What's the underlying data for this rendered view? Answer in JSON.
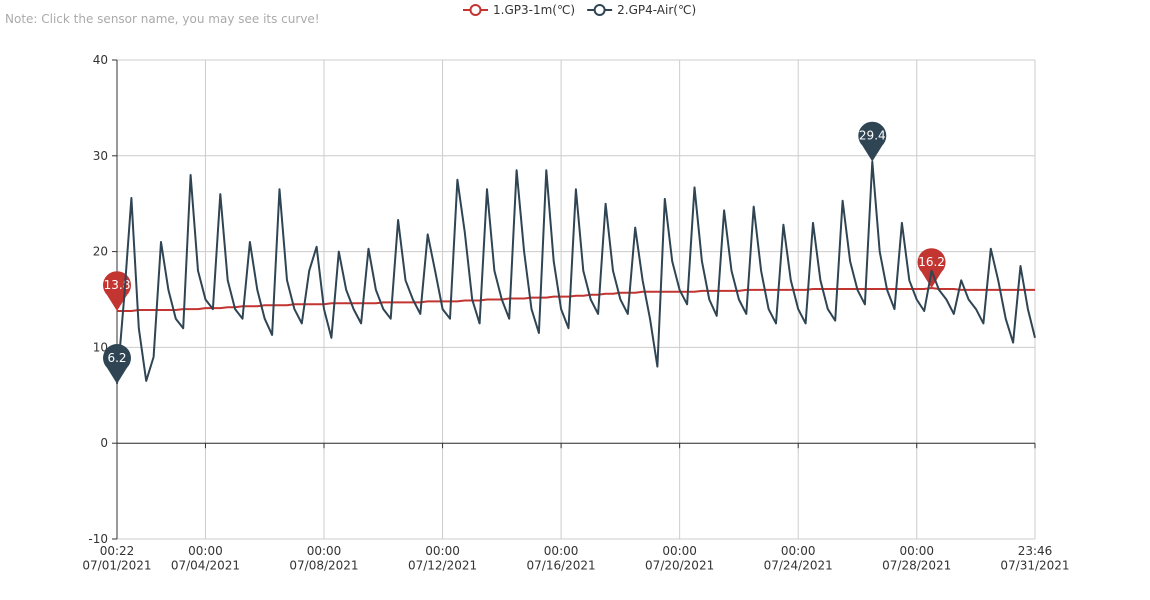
{
  "note": "Note: Click the sensor name, you may see its curve!",
  "chart_data": {
    "type": "line",
    "x": [
      "07/01/2021 00:22",
      "07/01/2021 06:00",
      "07/01/2021 12:00",
      "07/01/2021 18:00",
      "07/02/2021 00:00",
      "07/02/2021 06:00",
      "07/02/2021 12:00",
      "07/02/2021 18:00",
      "07/03/2021 00:00",
      "07/03/2021 06:00",
      "07/03/2021 12:00",
      "07/03/2021 18:00",
      "07/04/2021 00:00",
      "07/04/2021 06:00",
      "07/04/2021 12:00",
      "07/04/2021 18:00",
      "07/05/2021 00:00",
      "07/05/2021 06:00",
      "07/05/2021 12:00",
      "07/05/2021 18:00",
      "07/06/2021 00:00",
      "07/06/2021 06:00",
      "07/06/2021 12:00",
      "07/06/2021 18:00",
      "07/07/2021 00:00",
      "07/07/2021 06:00",
      "07/07/2021 12:00",
      "07/07/2021 18:00",
      "07/08/2021 00:00",
      "07/08/2021 06:00",
      "07/08/2021 12:00",
      "07/08/2021 18:00",
      "07/09/2021 00:00",
      "07/09/2021 06:00",
      "07/09/2021 12:00",
      "07/09/2021 18:00",
      "07/10/2021 00:00",
      "07/10/2021 06:00",
      "07/10/2021 12:00",
      "07/10/2021 18:00",
      "07/11/2021 00:00",
      "07/11/2021 06:00",
      "07/11/2021 12:00",
      "07/11/2021 18:00",
      "07/12/2021 00:00",
      "07/12/2021 06:00",
      "07/12/2021 12:00",
      "07/12/2021 18:00",
      "07/13/2021 00:00",
      "07/13/2021 06:00",
      "07/13/2021 12:00",
      "07/13/2021 18:00",
      "07/14/2021 00:00",
      "07/14/2021 06:00",
      "07/14/2021 12:00",
      "07/14/2021 18:00",
      "07/15/2021 00:00",
      "07/15/2021 06:00",
      "07/15/2021 12:00",
      "07/15/2021 18:00",
      "07/16/2021 00:00",
      "07/16/2021 06:00",
      "07/16/2021 12:00",
      "07/16/2021 18:00",
      "07/17/2021 00:00",
      "07/17/2021 06:00",
      "07/17/2021 12:00",
      "07/17/2021 18:00",
      "07/18/2021 00:00",
      "07/18/2021 06:00",
      "07/18/2021 12:00",
      "07/18/2021 18:00",
      "07/19/2021 00:00",
      "07/19/2021 06:00",
      "07/19/2021 12:00",
      "07/19/2021 18:00",
      "07/20/2021 00:00",
      "07/20/2021 06:00",
      "07/20/2021 12:00",
      "07/20/2021 18:00",
      "07/21/2021 00:00",
      "07/21/2021 06:00",
      "07/21/2021 12:00",
      "07/21/2021 18:00",
      "07/22/2021 00:00",
      "07/22/2021 06:00",
      "07/22/2021 12:00",
      "07/22/2021 18:00",
      "07/23/2021 00:00",
      "07/23/2021 06:00",
      "07/23/2021 12:00",
      "07/23/2021 18:00",
      "07/24/2021 00:00",
      "07/24/2021 06:00",
      "07/24/2021 12:00",
      "07/24/2021 18:00",
      "07/25/2021 00:00",
      "07/25/2021 06:00",
      "07/25/2021 12:00",
      "07/25/2021 18:00",
      "07/26/2021 00:00",
      "07/26/2021 06:00",
      "07/26/2021 12:00",
      "07/26/2021 18:00",
      "07/27/2021 00:00",
      "07/27/2021 06:00",
      "07/27/2021 12:00",
      "07/27/2021 18:00",
      "07/28/2021 00:00",
      "07/28/2021 06:00",
      "07/28/2021 12:00",
      "07/28/2021 18:00",
      "07/29/2021 00:00",
      "07/29/2021 06:00",
      "07/29/2021 12:00",
      "07/29/2021 18:00",
      "07/30/2021 00:00",
      "07/30/2021 06:00",
      "07/30/2021 12:00",
      "07/30/2021 18:00",
      "07/31/2021 00:00",
      "07/31/2021 06:00",
      "07/31/2021 12:00",
      "07/31/2021 18:00",
      "07/31/2021 23:46"
    ],
    "series": [
      {
        "name": "1.GP3-1m(℃)",
        "color": "#c23531",
        "values": [
          13.8,
          13.8,
          13.8,
          13.9,
          13.9,
          13.9,
          13.9,
          13.9,
          13.9,
          14.0,
          14.0,
          14.0,
          14.1,
          14.1,
          14.1,
          14.2,
          14.2,
          14.3,
          14.3,
          14.3,
          14.4,
          14.4,
          14.4,
          14.4,
          14.5,
          14.5,
          14.5,
          14.5,
          14.5,
          14.6,
          14.6,
          14.6,
          14.6,
          14.6,
          14.6,
          14.6,
          14.7,
          14.7,
          14.7,
          14.7,
          14.7,
          14.7,
          14.8,
          14.8,
          14.8,
          14.8,
          14.8,
          14.9,
          14.9,
          14.9,
          15.0,
          15.0,
          15.0,
          15.1,
          15.1,
          15.1,
          15.2,
          15.2,
          15.2,
          15.3,
          15.3,
          15.3,
          15.4,
          15.4,
          15.5,
          15.5,
          15.6,
          15.6,
          15.7,
          15.7,
          15.7,
          15.8,
          15.8,
          15.8,
          15.8,
          15.8,
          15.8,
          15.8,
          15.8,
          15.9,
          15.9,
          15.9,
          15.9,
          15.9,
          15.9,
          16.0,
          16.0,
          16.0,
          16.0,
          16.0,
          16.0,
          16.0,
          16.0,
          16.0,
          16.1,
          16.1,
          16.1,
          16.1,
          16.1,
          16.1,
          16.1,
          16.1,
          16.1,
          16.1,
          16.1,
          16.1,
          16.1,
          16.1,
          16.1,
          16.1,
          16.2,
          16.1,
          16.1,
          16.1,
          16.0,
          16.0,
          16.0,
          16.0,
          16.0,
          16.0,
          16.0,
          16.0,
          16.0,
          16.0,
          16.0
        ]
      },
      {
        "name": "2.GP4-Air(℃)",
        "color": "#2f4554",
        "values": [
          6.2,
          15,
          25.6,
          12,
          6.5,
          9,
          21,
          16,
          13,
          12,
          28,
          18,
          15,
          14,
          26,
          17,
          14,
          13,
          21,
          16,
          13,
          11.3,
          26.5,
          17,
          14,
          12.5,
          18,
          20.5,
          14,
          11,
          20,
          16,
          14,
          12.5,
          20.3,
          16,
          14,
          13,
          23.3,
          17,
          15,
          13.5,
          21.8,
          18,
          14,
          13,
          27.5,
          22,
          15,
          12.5,
          26.5,
          18,
          15,
          13,
          28.5,
          20,
          14,
          11.5,
          28.5,
          19,
          14,
          12,
          26.5,
          18,
          15,
          13.5,
          25,
          18,
          15,
          13.5,
          22.5,
          17,
          13,
          8,
          25.5,
          19,
          16,
          14.5,
          26.7,
          19,
          15,
          13.3,
          24.3,
          18,
          15,
          13.5,
          24.7,
          18,
          14,
          12.5,
          22.8,
          17,
          14,
          12.5,
          23,
          17,
          14,
          12.8,
          25.3,
          19,
          16,
          14.5,
          29.4,
          20,
          16,
          14,
          23,
          17,
          15,
          13.8,
          18,
          16,
          15,
          13.5,
          17,
          15,
          14,
          12.5,
          20.3,
          17,
          13,
          10.5,
          18.5,
          14,
          11
        ]
      }
    ],
    "xlim": [
      "07/01/2021 00:22",
      "07/31/2021 23:46"
    ],
    "xticks": [
      {
        "value": "07/01/2021 00:22",
        "label": "00:22\n07/01/2021"
      },
      {
        "value": "07/04/2021 00:00",
        "label": "00:00\n07/04/2021"
      },
      {
        "value": "07/08/2021 00:00",
        "label": "00:00\n07/08/2021"
      },
      {
        "value": "07/12/2021 00:00",
        "label": "00:00\n07/12/2021"
      },
      {
        "value": "07/16/2021 00:00",
        "label": "00:00\n07/16/2021"
      },
      {
        "value": "07/20/2021 00:00",
        "label": "00:00\n07/20/2021"
      },
      {
        "value": "07/24/2021 00:00",
        "label": "00:00\n07/24/2021"
      },
      {
        "value": "07/28/2021 00:00",
        "label": "00:00\n07/28/2021"
      },
      {
        "value": "07/31/2021 23:46",
        "label": "23:46\n07/31/2021"
      }
    ],
    "ylim": [
      -10,
      40
    ],
    "yticks": [
      -10,
      0,
      10,
      20,
      30,
      40
    ],
    "grid": true
  }
}
